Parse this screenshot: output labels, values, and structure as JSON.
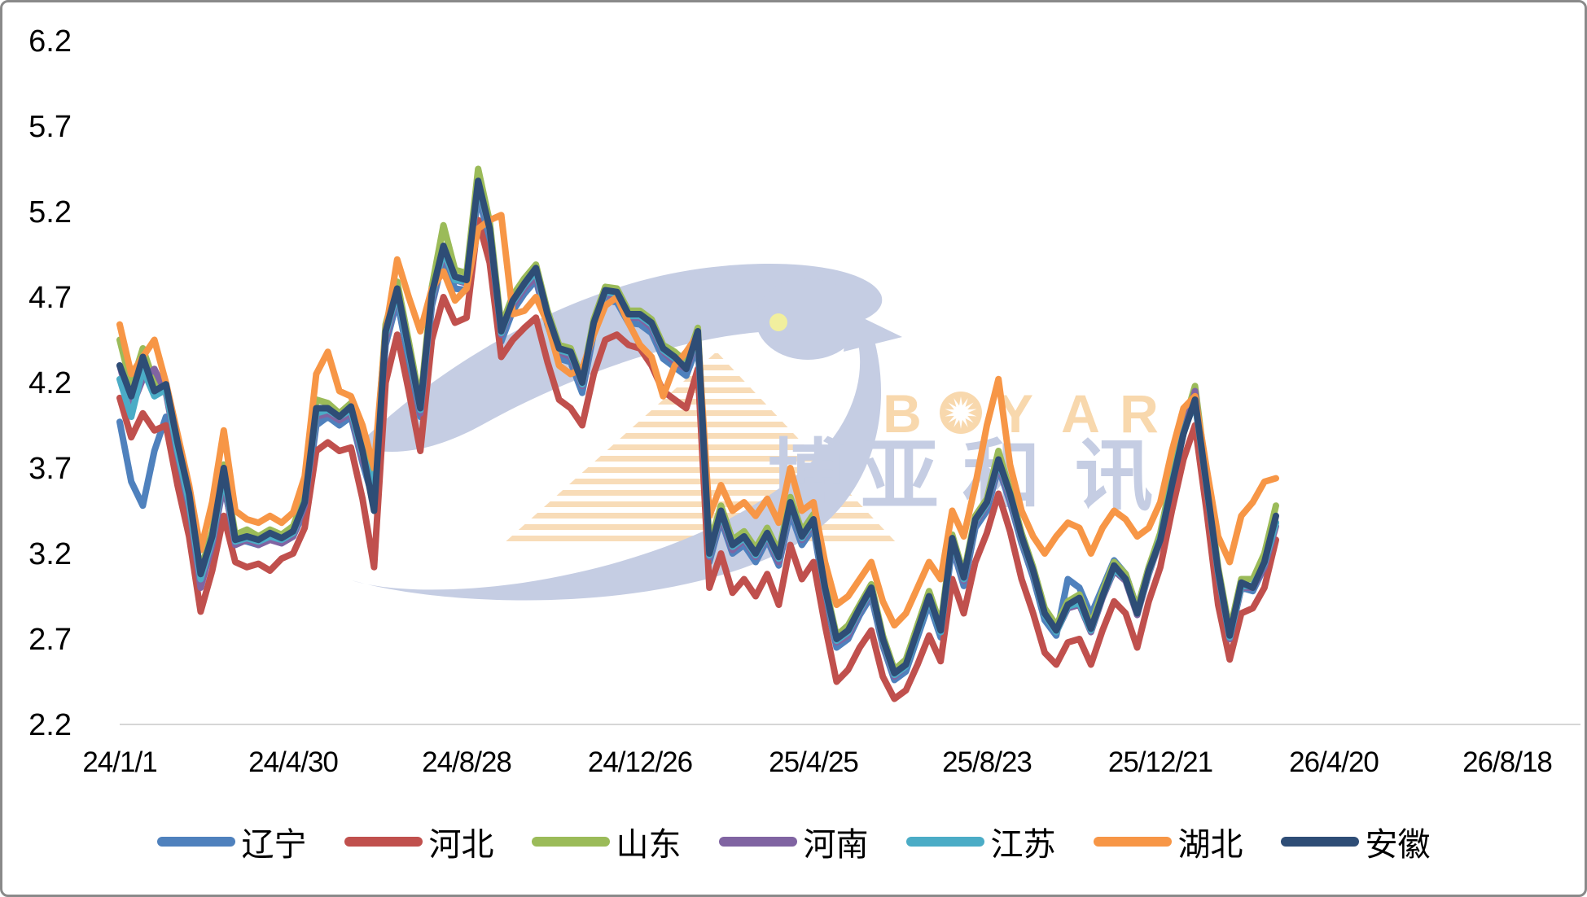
{
  "chart_data": {
    "type": "line",
    "title": "",
    "x_axis": {
      "tick_labels": [
        "24/1/1",
        "24/4/30",
        "24/8/28",
        "24/12/26",
        "25/4/25",
        "25/8/23",
        "25/12/21",
        "26/4/20",
        "26/8/18"
      ],
      "tick_days": [
        0,
        120,
        240,
        360,
        480,
        600,
        720,
        840,
        960
      ],
      "days_since_label": "24/1/1"
    },
    "y_axis": {
      "tick_labels": [
        "2.2",
        "2.7",
        "3.2",
        "3.7",
        "4.2",
        "4.7",
        "5.2",
        "5.7",
        "6.2"
      ],
      "ticks": [
        2.2,
        2.7,
        3.2,
        3.7,
        4.2,
        4.7,
        5.2,
        5.7,
        6.2
      ],
      "min": 2.2,
      "max": 6.2
    },
    "grid": "bottom-axis-line-only",
    "legend_position": "bottom",
    "x_days": [
      0,
      8,
      16,
      24,
      32,
      40,
      48,
      56,
      64,
      72,
      80,
      88,
      96,
      104,
      112,
      120,
      128,
      136,
      144,
      152,
      160,
      168,
      176,
      184,
      192,
      200,
      208,
      216,
      224,
      232,
      240,
      248,
      256,
      264,
      272,
      280,
      288,
      296,
      304,
      312,
      320,
      328,
      336,
      344,
      352,
      360,
      368,
      376,
      384,
      392,
      400,
      408,
      416,
      424,
      432,
      440,
      448,
      456,
      464,
      472,
      480,
      488,
      496,
      504,
      512,
      520,
      528,
      536,
      544,
      552,
      560,
      568,
      576,
      584,
      592,
      600,
      608,
      616,
      624,
      632,
      640,
      648,
      656,
      664,
      672,
      680,
      688,
      696,
      704,
      712,
      720,
      728,
      736,
      744,
      752,
      760,
      768,
      776,
      784,
      792,
      800
    ],
    "series": [
      {
        "id": "liaoning",
        "name": "辽宁",
        "color": "#4f81bd",
        "values": [
          3.97,
          3.62,
          3.48,
          3.8,
          4.0,
          3.72,
          3.45,
          3.02,
          3.26,
          3.6,
          3.28,
          3.27,
          3.25,
          3.29,
          3.26,
          3.3,
          3.45,
          3.95,
          4.0,
          3.95,
          4.0,
          3.73,
          3.5,
          4.42,
          4.68,
          4.33,
          4.0,
          4.65,
          4.93,
          4.75,
          4.74,
          5.3,
          5.03,
          4.44,
          4.62,
          4.72,
          4.8,
          4.54,
          4.34,
          4.32,
          4.14,
          4.49,
          4.68,
          4.67,
          4.55,
          4.54,
          4.49,
          4.34,
          4.29,
          4.24,
          4.42,
          3.15,
          3.4,
          3.2,
          3.25,
          3.15,
          3.28,
          3.13,
          3.44,
          3.25,
          3.35,
          2.95,
          2.65,
          2.7,
          2.84,
          2.95,
          2.66,
          2.46,
          2.51,
          2.71,
          2.91,
          2.71,
          3.24,
          3.01,
          3.35,
          3.45,
          3.7,
          3.5,
          3.26,
          3.06,
          2.81,
          2.72,
          3.05,
          3.0,
          2.84,
          3.0,
          3.16,
          3.08,
          2.88,
          3.12,
          3.3,
          3.62,
          3.92,
          4.08,
          3.58,
          3.08,
          2.7,
          3.0,
          2.98,
          3.12,
          3.38
        ]
      },
      {
        "id": "hebei",
        "name": "河北",
        "color": "#c0504d",
        "values": [
          4.11,
          3.88,
          4.02,
          3.92,
          3.95,
          3.6,
          3.3,
          2.86,
          3.1,
          3.42,
          3.15,
          3.12,
          3.14,
          3.1,
          3.17,
          3.2,
          3.35,
          3.8,
          3.85,
          3.8,
          3.82,
          3.52,
          3.12,
          4.2,
          4.48,
          4.15,
          3.8,
          4.45,
          4.7,
          4.55,
          4.58,
          5.15,
          4.9,
          4.35,
          4.45,
          4.52,
          4.58,
          4.32,
          4.1,
          4.05,
          3.95,
          4.25,
          4.45,
          4.48,
          4.42,
          4.4,
          4.3,
          4.15,
          4.1,
          4.05,
          4.28,
          3.0,
          3.2,
          2.97,
          3.05,
          2.95,
          3.08,
          2.9,
          3.25,
          3.05,
          3.15,
          2.78,
          2.45,
          2.52,
          2.65,
          2.75,
          2.48,
          2.35,
          2.4,
          2.55,
          2.72,
          2.57,
          3.05,
          2.85,
          3.15,
          3.32,
          3.55,
          3.33,
          3.05,
          2.85,
          2.62,
          2.55,
          2.68,
          2.7,
          2.55,
          2.75,
          2.92,
          2.85,
          2.65,
          2.92,
          3.12,
          3.45,
          3.75,
          3.95,
          3.45,
          2.9,
          2.58,
          2.85,
          2.88,
          3.0,
          3.28
        ]
      },
      {
        "id": "shandong",
        "name": "山东",
        "color": "#9bbb59",
        "values": [
          4.45,
          4.18,
          4.4,
          4.2,
          4.16,
          3.82,
          3.52,
          3.1,
          3.33,
          3.72,
          3.31,
          3.34,
          3.3,
          3.34,
          3.31,
          3.36,
          3.54,
          4.1,
          4.08,
          4.02,
          4.08,
          3.82,
          3.62,
          4.54,
          4.79,
          4.44,
          4.08,
          4.76,
          5.12,
          4.86,
          4.84,
          5.45,
          5.14,
          4.53,
          4.71,
          4.81,
          4.89,
          4.62,
          4.42,
          4.4,
          4.22,
          4.57,
          4.76,
          4.75,
          4.62,
          4.62,
          4.57,
          4.42,
          4.38,
          4.32,
          4.52,
          3.25,
          3.48,
          3.28,
          3.33,
          3.23,
          3.35,
          3.21,
          3.53,
          3.33,
          3.43,
          3.02,
          2.72,
          2.78,
          2.9,
          3.02,
          2.72,
          2.52,
          2.58,
          2.78,
          2.98,
          2.78,
          3.31,
          3.08,
          3.42,
          3.52,
          3.8,
          3.57,
          3.32,
          3.12,
          2.88,
          2.78,
          2.92,
          2.96,
          2.78,
          2.98,
          3.15,
          3.08,
          2.88,
          3.12,
          3.32,
          3.65,
          3.95,
          4.18,
          3.65,
          3.12,
          2.75,
          3.05,
          3.05,
          3.2,
          3.48
        ]
      },
      {
        "id": "henan",
        "name": "河南",
        "color": "#8064a2",
        "values": [
          4.3,
          4.05,
          4.22,
          4.28,
          4.14,
          3.78,
          3.48,
          3.0,
          3.25,
          3.62,
          3.25,
          3.28,
          3.25,
          3.28,
          3.26,
          3.3,
          3.48,
          4.0,
          4.02,
          3.98,
          4.02,
          3.75,
          3.55,
          4.45,
          4.72,
          4.38,
          4.02,
          4.68,
          4.95,
          4.8,
          4.78,
          5.35,
          5.08,
          4.48,
          4.65,
          4.75,
          4.82,
          4.56,
          4.38,
          4.35,
          4.18,
          4.52,
          4.72,
          4.7,
          4.58,
          4.58,
          4.52,
          4.38,
          4.32,
          4.28,
          4.45,
          3.18,
          3.42,
          3.22,
          3.28,
          3.18,
          3.3,
          3.15,
          3.48,
          3.28,
          3.38,
          2.98,
          2.68,
          2.72,
          2.86,
          2.98,
          2.68,
          2.48,
          2.54,
          2.74,
          2.94,
          2.74,
          3.27,
          3.04,
          3.38,
          3.48,
          3.72,
          3.52,
          3.28,
          3.08,
          2.84,
          2.74,
          2.88,
          2.9,
          2.74,
          2.94,
          3.1,
          3.04,
          2.84,
          3.08,
          3.28,
          3.6,
          3.9,
          4.15,
          3.6,
          3.08,
          2.7,
          3.0,
          3.0,
          3.12,
          3.36
        ]
      },
      {
        "id": "jiangsu",
        "name": "江苏",
        "color": "#4bacc6",
        "values": [
          4.22,
          4.0,
          4.28,
          4.12,
          4.16,
          3.8,
          3.5,
          3.05,
          3.28,
          3.66,
          3.27,
          3.29,
          3.27,
          3.3,
          3.28,
          3.32,
          3.5,
          4.02,
          4.04,
          4.0,
          4.04,
          3.78,
          3.58,
          4.48,
          4.73,
          4.38,
          4.04,
          4.7,
          4.97,
          4.8,
          4.79,
          5.36,
          5.09,
          4.49,
          4.67,
          4.77,
          4.85,
          4.58,
          4.39,
          4.37,
          4.19,
          4.54,
          4.73,
          4.72,
          4.59,
          4.59,
          4.54,
          4.39,
          4.34,
          4.29,
          4.47,
          3.19,
          3.44,
          3.24,
          3.29,
          3.19,
          3.31,
          3.17,
          3.49,
          3.29,
          3.39,
          2.99,
          2.69,
          2.74,
          2.87,
          2.99,
          2.69,
          2.49,
          2.54,
          2.74,
          2.94,
          2.74,
          3.28,
          3.05,
          3.39,
          3.49,
          3.74,
          3.54,
          3.29,
          3.09,
          2.84,
          2.74,
          2.89,
          2.91,
          2.75,
          2.95,
          3.11,
          3.05,
          2.85,
          3.09,
          3.29,
          3.61,
          3.91,
          4.09,
          3.59,
          3.09,
          2.71,
          3.01,
          3.01,
          3.14,
          3.38
        ]
      },
      {
        "id": "hubei",
        "name": "湖北",
        "color": "#f79646",
        "values": [
          4.54,
          4.25,
          4.35,
          4.45,
          4.2,
          3.9,
          3.6,
          3.22,
          3.5,
          3.92,
          3.45,
          3.4,
          3.38,
          3.42,
          3.38,
          3.44,
          3.65,
          4.25,
          4.38,
          4.15,
          4.12,
          3.95,
          3.7,
          4.5,
          4.92,
          4.7,
          4.5,
          4.75,
          4.85,
          4.68,
          4.75,
          5.1,
          5.15,
          5.18,
          4.6,
          4.62,
          4.7,
          4.55,
          4.3,
          4.25,
          4.28,
          4.48,
          4.65,
          4.7,
          4.55,
          4.42,
          4.35,
          4.12,
          4.3,
          4.38,
          4.48,
          3.42,
          3.6,
          3.45,
          3.5,
          3.42,
          3.52,
          3.38,
          3.7,
          3.45,
          3.5,
          3.15,
          2.9,
          2.95,
          3.05,
          3.15,
          2.92,
          2.78,
          2.85,
          3.0,
          3.15,
          3.05,
          3.45,
          3.3,
          3.6,
          3.95,
          4.22,
          3.72,
          3.45,
          3.3,
          3.2,
          3.3,
          3.38,
          3.35,
          3.2,
          3.35,
          3.45,
          3.4,
          3.3,
          3.35,
          3.5,
          3.8,
          4.05,
          4.12,
          3.7,
          3.3,
          3.15,
          3.42,
          3.5,
          3.62,
          3.64
        ]
      },
      {
        "id": "anhui",
        "name": "安徽",
        "color": "#2e4d76",
        "values": [
          4.3,
          4.12,
          4.35,
          4.15,
          4.19,
          3.85,
          3.55,
          3.08,
          3.3,
          3.7,
          3.28,
          3.3,
          3.28,
          3.32,
          3.29,
          3.33,
          3.5,
          4.05,
          4.05,
          4.0,
          4.06,
          3.8,
          3.45,
          4.5,
          4.75,
          4.4,
          4.05,
          4.72,
          5.0,
          4.82,
          4.8,
          5.38,
          5.1,
          4.5,
          4.68,
          4.78,
          4.87,
          4.6,
          4.4,
          4.38,
          4.2,
          4.55,
          4.74,
          4.73,
          4.6,
          4.6,
          4.55,
          4.4,
          4.35,
          4.28,
          4.5,
          3.2,
          3.45,
          3.25,
          3.3,
          3.2,
          3.32,
          3.18,
          3.5,
          3.3,
          3.4,
          3.0,
          2.7,
          2.75,
          2.88,
          3.0,
          2.7,
          2.5,
          2.55,
          2.75,
          2.95,
          2.75,
          3.29,
          3.06,
          3.4,
          3.5,
          3.75,
          3.55,
          3.3,
          3.1,
          2.85,
          2.75,
          2.9,
          2.94,
          2.76,
          2.95,
          3.13,
          3.05,
          2.85,
          3.1,
          3.28,
          3.6,
          3.9,
          4.1,
          3.6,
          3.1,
          2.72,
          3.03,
          3.0,
          3.15,
          3.42
        ]
      }
    ]
  },
  "legend": {
    "items": [
      {
        "label": "辽宁",
        "color": "#4f81bd"
      },
      {
        "label": "河北",
        "color": "#c0504d"
      },
      {
        "label": "山东",
        "color": "#9bbb59"
      },
      {
        "label": "河南",
        "color": "#8064a2"
      },
      {
        "label": "江苏",
        "color": "#4bacc6"
      },
      {
        "label": "湖北",
        "color": "#f79646"
      },
      {
        "label": "安徽",
        "color": "#2e4d76"
      }
    ]
  },
  "watermark": {
    "brand_text": "BOYAR",
    "brand_cn": "博亚和讯",
    "dove_color": "#c5cde3",
    "brand_text_color": "#f8d8ad",
    "stripe_color": "#f8dcb8",
    "eye_color": "#f1ef9e"
  },
  "style": {
    "background": "#ffffff",
    "axis_line_color": "#d6d6d6",
    "label_color": "#000000",
    "border_color": "#8a8a8a",
    "line_width": 8
  }
}
